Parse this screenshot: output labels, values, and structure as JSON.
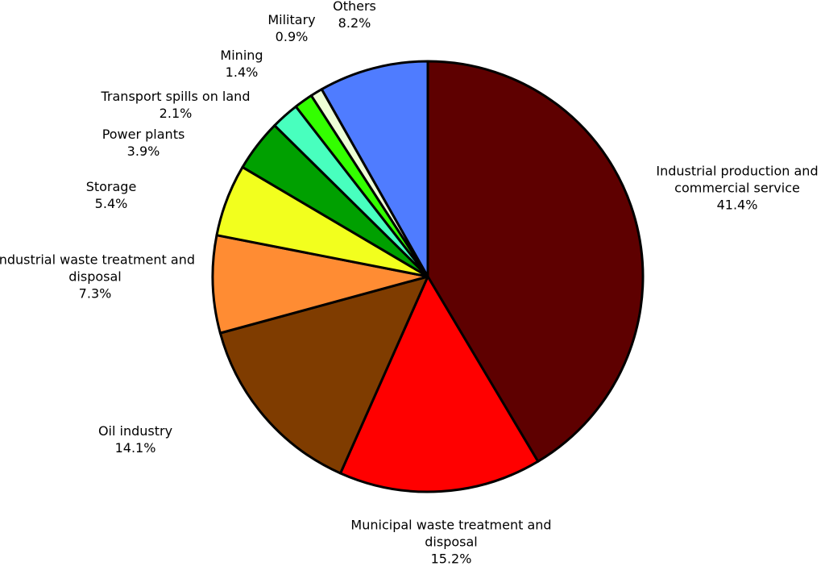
{
  "chart_data": {
    "type": "pie",
    "categories": [
      "Industrial production and commercial service",
      "Municipal waste treatment and disposal",
      "Oil industry",
      "Industrial waste treatment and disposal",
      "Storage",
      "Power plants",
      "Transport spills on land",
      "Mining",
      "Military",
      "Others"
    ],
    "values": [
      41.4,
      15.2,
      14.1,
      7.3,
      5.4,
      3.9,
      2.1,
      1.4,
      0.9,
      8.2
    ],
    "value_labels": [
      "41.4%",
      "15.2%",
      "14.1%",
      "7.3%",
      "5.4%",
      "3.9%",
      "2.1%",
      "1.4%",
      "0.9%",
      "8.2%"
    ],
    "colors": [
      "#5e0000",
      "#ff0000",
      "#7f3c00",
      "#ff8c33",
      "#f2ff1e",
      "#00a000",
      "#48ffbe",
      "#33ff00",
      "#eeffd6",
      "#4f7cff"
    ]
  }
}
